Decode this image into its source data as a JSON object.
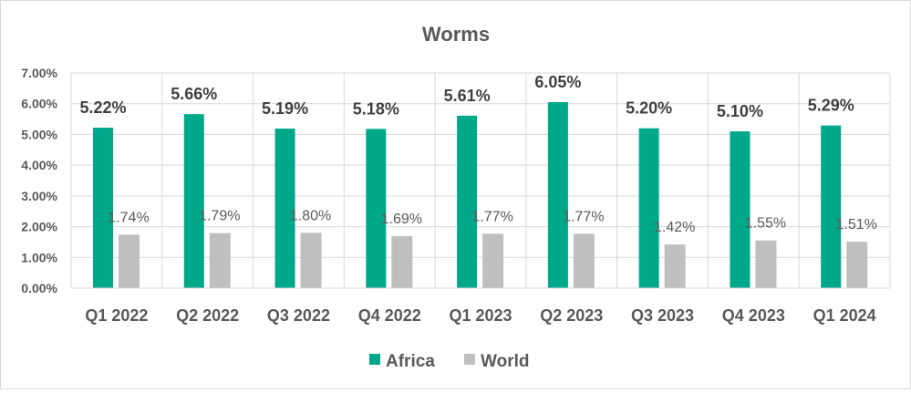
{
  "chart_data": {
    "type": "bar",
    "title": "Worms",
    "categories": [
      "Q1 2022",
      "Q2 2022",
      "Q3 2022",
      "Q4 2022",
      "Q1 2023",
      "Q2 2023",
      "Q3 2023",
      "Q4 2023",
      "Q1 2024"
    ],
    "series": [
      {
        "name": "Africa",
        "color": "#00A88A",
        "values": [
          5.22,
          5.66,
          5.19,
          5.18,
          5.61,
          6.05,
          5.2,
          5.1,
          5.29
        ],
        "labels": [
          "5.22%",
          "5.66%",
          "5.19%",
          "5.18%",
          "5.61%",
          "6.05%",
          "5.20%",
          "5.10%",
          "5.29%"
        ]
      },
      {
        "name": "World",
        "color": "#BFBFBF",
        "values": [
          1.74,
          1.79,
          1.8,
          1.69,
          1.77,
          1.77,
          1.42,
          1.55,
          1.51
        ],
        "labels": [
          "1.74%",
          "1.79%",
          "1.80%",
          "1.69%",
          "1.77%",
          "1.77%",
          "1.42%",
          "1.55%",
          "1.51%"
        ]
      }
    ],
    "yticks": [
      "0.00%",
      "1.00%",
      "2.00%",
      "3.00%",
      "4.00%",
      "5.00%",
      "6.00%",
      "7.00%"
    ],
    "ylim": [
      0,
      7
    ],
    "grid": true,
    "legend": "bottom"
  }
}
